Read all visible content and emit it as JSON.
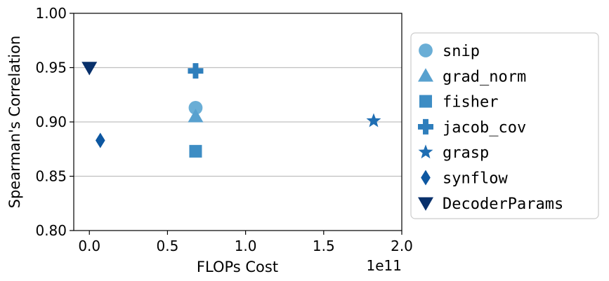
{
  "chart_data": {
    "type": "scatter",
    "xlabel": "FLOPs Cost",
    "ylabel": "Spearman's Correlation",
    "x_offset_label": "1e11",
    "xlim": [
      -0.1,
      2.0
    ],
    "ylim": [
      0.8,
      1.0
    ],
    "x_ticks": [
      0.0,
      0.5,
      1.0,
      1.5,
      2.0
    ],
    "x_tick_labels": [
      "0.0",
      "0.5",
      "1.0",
      "1.5",
      "2.0"
    ],
    "y_ticks": [
      0.8,
      0.85,
      0.9,
      0.95,
      1.0
    ],
    "y_tick_labels": [
      "0.80",
      "0.85",
      "0.90",
      "0.95",
      "1.00"
    ],
    "grid": "horizontal",
    "legend_position": "right, outside",
    "series": [
      {
        "name": "snip",
        "marker": "circle",
        "color": "#6aaed6",
        "x": 0.68,
        "y": 0.913
      },
      {
        "name": "grad_norm",
        "marker": "triangle-up",
        "color": "#58a1cf",
        "x": 0.68,
        "y": 0.905
      },
      {
        "name": "fisher",
        "marker": "square",
        "color": "#3d8dc4",
        "x": 0.68,
        "y": 0.873
      },
      {
        "name": "jacob_cov",
        "marker": "plus",
        "color": "#2e7ebc",
        "x": 0.68,
        "y": 0.947
      },
      {
        "name": "grasp",
        "marker": "star",
        "color": "#1f6eb3",
        "x": 1.82,
        "y": 0.901
      },
      {
        "name": "synflow",
        "marker": "diamond",
        "color": "#0d57a1",
        "x": 0.07,
        "y": 0.883
      },
      {
        "name": "DecoderParams",
        "marker": "triangle-down",
        "color": "#08306b",
        "x": 0.0,
        "y": 0.95
      }
    ]
  }
}
